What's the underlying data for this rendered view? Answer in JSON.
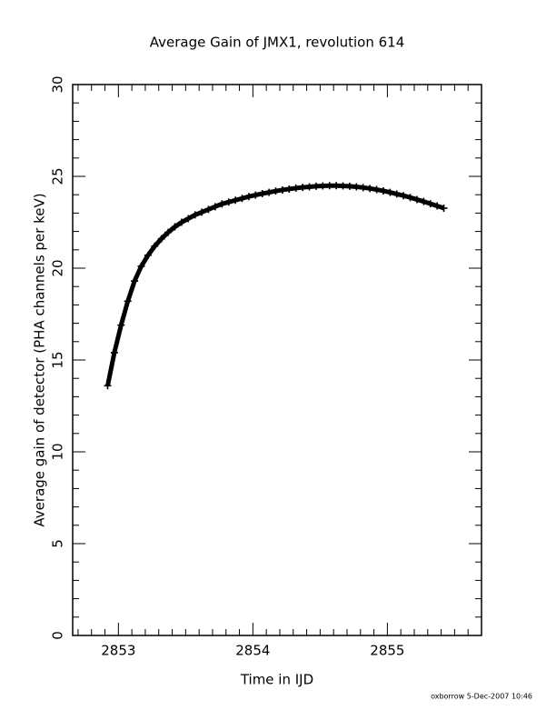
{
  "chart_data": {
    "type": "scatter",
    "title": "Average Gain of JMX1, revolution 614",
    "xlabel": "Time in IJD",
    "ylabel": "Average gain of detector (PHA channels per keV)",
    "annotation": "oxborrow  5-Dec-2007 10:46",
    "color": "#000000",
    "marker": "+",
    "xlim": [
      2852.66,
      2855.7
    ],
    "ylim": [
      0,
      30
    ],
    "xticks": [
      2853,
      2854,
      2855
    ],
    "yticks": [
      0,
      5,
      10,
      15,
      20,
      25,
      30
    ],
    "xminorticks": [
      2852.7,
      2852.8,
      2852.9,
      2853.1,
      2853.2,
      2853.3,
      2853.4,
      2853.5,
      2853.6,
      2853.7,
      2853.8,
      2853.9,
      2854.1,
      2854.2,
      2854.3,
      2854.4,
      2854.5,
      2854.6,
      2854.7,
      2854.8,
      2854.9,
      2855.1,
      2855.2,
      2855.3,
      2855.4,
      2855.5,
      2855.6
    ],
    "yminorticks": [
      1,
      2,
      3,
      4,
      6,
      7,
      8,
      9,
      11,
      12,
      13,
      14,
      16,
      17,
      18,
      19,
      21,
      22,
      23,
      24,
      26,
      27,
      28,
      29
    ],
    "x": [
      2852.92,
      2852.97,
      2853.02,
      2853.07,
      2853.12,
      2853.17,
      2853.22,
      2853.27,
      2853.32,
      2853.37,
      2853.42,
      2853.47,
      2853.52,
      2853.57,
      2853.62,
      2853.67,
      2853.72,
      2853.77,
      2853.82,
      2853.87,
      2853.92,
      2853.97,
      2854.02,
      2854.07,
      2854.12,
      2854.17,
      2854.22,
      2854.27,
      2854.32,
      2854.37,
      2854.42,
      2854.47,
      2854.52,
      2854.57,
      2854.62,
      2854.67,
      2854.72,
      2854.77,
      2854.82,
      2854.87,
      2854.92,
      2854.97,
      2855.02,
      2855.07,
      2855.12,
      2855.17,
      2855.22,
      2855.27,
      2855.32,
      2855.37,
      2855.42
    ],
    "values": [
      13.6,
      15.4,
      16.9,
      18.2,
      19.3,
      20.1,
      20.7,
      21.2,
      21.6,
      21.95,
      22.25,
      22.5,
      22.7,
      22.9,
      23.05,
      23.2,
      23.35,
      23.5,
      23.6,
      23.7,
      23.8,
      23.9,
      23.98,
      24.06,
      24.13,
      24.2,
      24.26,
      24.31,
      24.36,
      24.4,
      24.43,
      24.46,
      24.48,
      24.49,
      24.49,
      24.48,
      24.46,
      24.43,
      24.39,
      24.34,
      24.28,
      24.21,
      24.13,
      24.04,
      23.95,
      23.85,
      23.74,
      23.63,
      23.51,
      23.39,
      23.27
    ]
  }
}
